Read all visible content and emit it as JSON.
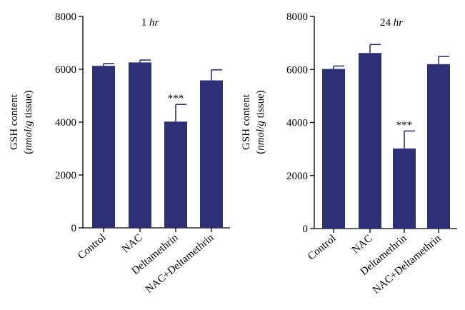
{
  "chart_data": [
    {
      "type": "bar",
      "title_prefix": "1 ",
      "title_italic": "hr",
      "ylabel_line1": "GSH content",
      "ylabel_line2_open": "(",
      "ylabel_line2_italic1": "nmol",
      "ylabel_line2_slash": "/",
      "ylabel_line2_italic2": "g",
      "ylabel_line2_rest": " tissue)",
      "ylim": [
        0,
        8000
      ],
      "yticks": [
        "0",
        "2000",
        "4000",
        "6000",
        "8000"
      ],
      "categories": [
        "Control",
        "NAC",
        "Deltamethrin",
        "NAC+Deltamethrin"
      ],
      "values": [
        6130,
        6260,
        4020,
        5580
      ],
      "errors": [
        90,
        90,
        650,
        400
      ],
      "annotations": [
        "",
        "",
        "***",
        ""
      ],
      "color": "#2e3075"
    },
    {
      "type": "bar",
      "title_prefix": "24 ",
      "title_italic": "hr",
      "ylabel_line1": "GSH content",
      "ylabel_line2_open": "(",
      "ylabel_line2_italic1": "nmol",
      "ylabel_line2_slash": "/",
      "ylabel_line2_italic2": "g",
      "ylabel_line2_rest": " tissue)",
      "ylim": [
        0,
        8000
      ],
      "yticks": [
        "0",
        "2000",
        "4000",
        "6000",
        "8000"
      ],
      "categories": [
        "Control",
        "NAC",
        "Deltamethrin",
        "NAC+Deltamethrin"
      ],
      "values": [
        6020,
        6620,
        3020,
        6200
      ],
      "errors": [
        110,
        320,
        660,
        290
      ],
      "annotations": [
        "",
        "",
        "***",
        ""
      ],
      "color": "#2e3075"
    }
  ]
}
